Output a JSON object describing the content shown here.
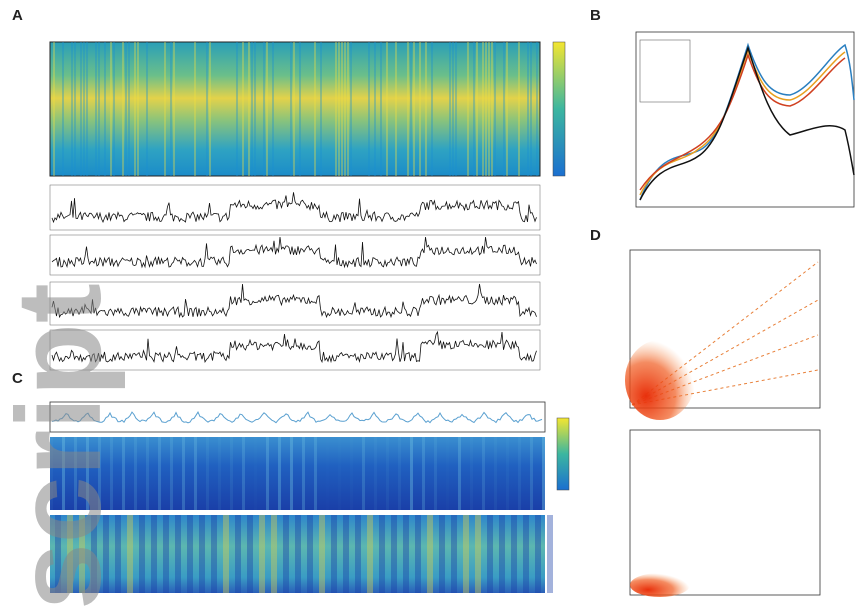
{
  "panels": [
    {
      "label": "A"
    },
    {
      "label": "B"
    },
    {
      "label": "C"
    },
    {
      "label": "D"
    }
  ],
  "watermark": "script"
}
